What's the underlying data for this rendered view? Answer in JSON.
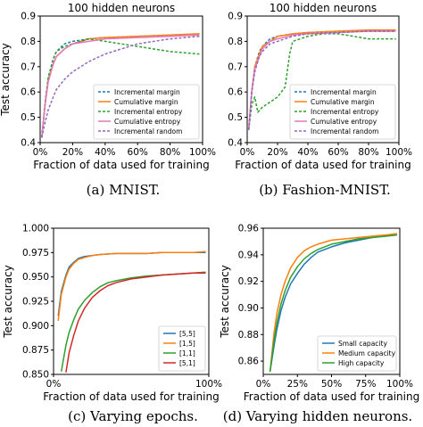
{
  "chart_data": [
    {
      "type": "line",
      "panel": "a",
      "title": "100 hidden neurons",
      "caption": "(a) MNIST.",
      "xlabel": "Fraction of data used for training",
      "ylabel": "Test accuracy",
      "xlim": [
        0,
        100
      ],
      "ylim": [
        0.4,
        0.9
      ],
      "xticks": [
        0,
        20,
        40,
        60,
        80,
        100
      ],
      "xtick_labels": [
        "0%",
        "20%",
        "40%",
        "60%",
        "80%",
        "100%"
      ],
      "yticks": [
        0.4,
        0.5,
        0.6,
        0.7,
        0.8,
        0.9
      ],
      "ytick_labels": [
        "0.4",
        "0.5",
        "0.6",
        "0.7",
        "0.8",
        "0.9"
      ],
      "legend_position": "bottom-right",
      "series": [
        {
          "name": "Incremental margin",
          "color": "#1f77b4",
          "dashed": true,
          "x": [
            1,
            3,
            5,
            8,
            10,
            15,
            20,
            30,
            40,
            60,
            80,
            98
          ],
          "y": [
            0.42,
            0.55,
            0.65,
            0.73,
            0.76,
            0.79,
            0.8,
            0.81,
            0.815,
            0.82,
            0.825,
            0.83
          ]
        },
        {
          "name": "Cumulative margin",
          "color": "#ff7f0e",
          "dashed": false,
          "x": [
            1,
            3,
            5,
            8,
            10,
            15,
            20,
            30,
            40,
            60,
            80,
            98
          ],
          "y": [
            0.42,
            0.55,
            0.65,
            0.71,
            0.74,
            0.77,
            0.79,
            0.81,
            0.815,
            0.82,
            0.825,
            0.83
          ]
        },
        {
          "name": "Incremental entropy",
          "color": "#2ca02c",
          "dashed": true,
          "x": [
            1,
            3,
            5,
            8,
            10,
            15,
            20,
            25,
            30,
            40,
            60,
            80,
            98
          ],
          "y": [
            0.42,
            0.56,
            0.66,
            0.73,
            0.76,
            0.78,
            0.79,
            0.8,
            0.81,
            0.8,
            0.78,
            0.76,
            0.75
          ]
        },
        {
          "name": "Cumulative entropy",
          "color": "#e377c2",
          "dashed": false,
          "x": [
            1,
            3,
            5,
            8,
            10,
            15,
            20,
            30,
            40,
            60,
            80,
            98
          ],
          "y": [
            0.42,
            0.55,
            0.64,
            0.71,
            0.74,
            0.77,
            0.79,
            0.8,
            0.81,
            0.815,
            0.82,
            0.825
          ]
        },
        {
          "name": "Incremental random",
          "color": "#9467bd",
          "dashed": true,
          "x": [
            1,
            3,
            5,
            8,
            10,
            15,
            20,
            30,
            40,
            50,
            60,
            80,
            98
          ],
          "y": [
            0.42,
            0.48,
            0.53,
            0.58,
            0.61,
            0.65,
            0.68,
            0.72,
            0.75,
            0.77,
            0.79,
            0.81,
            0.82
          ]
        }
      ]
    },
    {
      "type": "line",
      "panel": "b",
      "title": "100 hidden neurons",
      "caption": "(b) Fashion-MNIST.",
      "xlabel": "Fraction of data used for training",
      "ylabel": "",
      "xlim": [
        0,
        100
      ],
      "ylim": [
        0.4,
        0.9
      ],
      "xticks": [
        0,
        20,
        40,
        60,
        80,
        100
      ],
      "xtick_labels": [
        "0%",
        "20%",
        "40%",
        "60%",
        "80%",
        "100%"
      ],
      "yticks": [
        0.4,
        0.5,
        0.6,
        0.7,
        0.8,
        0.9
      ],
      "ytick_labels": [
        "0.4",
        "0.5",
        "0.6",
        "0.7",
        "0.8",
        "0.9"
      ],
      "legend_position": "bottom-right",
      "series": [
        {
          "name": "Incremental margin",
          "color": "#1f77b4",
          "dashed": true,
          "x": [
            1,
            3,
            5,
            8,
            10,
            15,
            20,
            30,
            40,
            60,
            80,
            98
          ],
          "y": [
            0.45,
            0.6,
            0.7,
            0.76,
            0.78,
            0.81,
            0.82,
            0.83,
            0.835,
            0.84,
            0.84,
            0.84
          ]
        },
        {
          "name": "Cumulative margin",
          "color": "#ff7f0e",
          "dashed": false,
          "x": [
            1,
            3,
            5,
            8,
            10,
            15,
            20,
            30,
            40,
            60,
            80,
            98
          ],
          "y": [
            0.45,
            0.6,
            0.7,
            0.75,
            0.78,
            0.8,
            0.82,
            0.83,
            0.835,
            0.84,
            0.845,
            0.845
          ]
        },
        {
          "name": "Incremental entropy",
          "color": "#2ca02c",
          "dashed": true,
          "x": [
            1,
            3,
            5,
            7,
            10,
            15,
            20,
            25,
            28,
            30,
            40,
            50,
            60,
            70,
            80,
            90,
            98
          ],
          "y": [
            0.45,
            0.55,
            0.58,
            0.52,
            0.54,
            0.56,
            0.58,
            0.62,
            0.75,
            0.8,
            0.82,
            0.83,
            0.83,
            0.82,
            0.81,
            0.81,
            0.81
          ]
        },
        {
          "name": "Cumulative entropy",
          "color": "#e377c2",
          "dashed": false,
          "x": [
            1,
            3,
            5,
            8,
            10,
            15,
            20,
            30,
            40,
            60,
            80,
            98
          ],
          "y": [
            0.45,
            0.6,
            0.69,
            0.74,
            0.77,
            0.8,
            0.81,
            0.825,
            0.83,
            0.835,
            0.84,
            0.84
          ]
        },
        {
          "name": "Incremental random",
          "color": "#9467bd",
          "dashed": true,
          "x": [
            1,
            3,
            5,
            8,
            10,
            15,
            20,
            30,
            40,
            60,
            80,
            98
          ],
          "y": [
            0.45,
            0.6,
            0.68,
            0.74,
            0.76,
            0.79,
            0.8,
            0.82,
            0.83,
            0.835,
            0.84,
            0.84
          ]
        }
      ]
    },
    {
      "type": "line",
      "panel": "c",
      "title": "",
      "caption": "(c) Varying epochs.",
      "xlabel": "Fraction of data used for training",
      "ylabel": "Test accuracy",
      "xlim": [
        0,
        100
      ],
      "ylim": [
        0.85,
        1.0
      ],
      "xticks": [
        0,
        100
      ],
      "xtick_labels": [
        "0%",
        "100%"
      ],
      "yticks": [
        0.85,
        0.875,
        0.9,
        0.925,
        0.95,
        0.975,
        1.0
      ],
      "ytick_labels": [
        "0.850",
        "0.875",
        "0.900",
        "0.925",
        "0.950",
        "0.975",
        "1.000"
      ],
      "legend_position": "bottom-right",
      "series": [
        {
          "name": "[5,5]",
          "color": "#1f77b4",
          "dashed": false,
          "x": [
            3,
            5,
            8,
            10,
            13,
            16,
            20,
            25,
            30,
            40,
            50,
            60,
            70,
            80,
            90,
            98
          ],
          "y": [
            0.91,
            0.935,
            0.952,
            0.96,
            0.965,
            0.969,
            0.971,
            0.972,
            0.973,
            0.974,
            0.974,
            0.974,
            0.975,
            0.975,
            0.975,
            0.975
          ]
        },
        {
          "name": "[1,5]",
          "color": "#ff7f0e",
          "dashed": false,
          "x": [
            3,
            5,
            8,
            10,
            13,
            16,
            20,
            25,
            30,
            40,
            50,
            60,
            70,
            80,
            90,
            98
          ],
          "y": [
            0.905,
            0.932,
            0.95,
            0.958,
            0.964,
            0.968,
            0.97,
            0.972,
            0.973,
            0.974,
            0.974,
            0.974,
            0.975,
            0.975,
            0.975,
            0.976
          ]
        },
        {
          "name": "[1,1]",
          "color": "#2ca02c",
          "dashed": false,
          "x": [
            5,
            8,
            10,
            13,
            16,
            20,
            25,
            30,
            35,
            40,
            50,
            60,
            70,
            80,
            90,
            98
          ],
          "y": [
            0.853,
            0.88,
            0.893,
            0.906,
            0.917,
            0.926,
            0.934,
            0.94,
            0.944,
            0.946,
            0.949,
            0.951,
            0.952,
            0.953,
            0.954,
            0.955
          ]
        },
        {
          "name": "[5,1]",
          "color": "#d62728",
          "dashed": false,
          "x": [
            8,
            10,
            13,
            16,
            20,
            25,
            30,
            35,
            40,
            50,
            60,
            70,
            80,
            90,
            98
          ],
          "y": [
            0.852,
            0.872,
            0.89,
            0.905,
            0.918,
            0.929,
            0.936,
            0.941,
            0.944,
            0.948,
            0.95,
            0.952,
            0.953,
            0.954,
            0.954
          ]
        }
      ]
    },
    {
      "type": "line",
      "panel": "d",
      "title": "",
      "caption": "(d) Varying hidden neurons.",
      "xlabel": "Fraction of data used for training",
      "ylabel": "Test accuracy",
      "xlim": [
        0,
        100
      ],
      "ylim": [
        0.85,
        0.96
      ],
      "xticks": [
        0,
        25,
        50,
        75,
        100
      ],
      "xtick_labels": [
        "0%",
        "25%",
        "50%",
        "75%",
        "100%"
      ],
      "yticks": [
        0.86,
        0.88,
        0.9,
        0.92,
        0.94,
        0.96
      ],
      "ytick_labels": [
        "0.86",
        "0.88",
        "0.90",
        "0.92",
        "0.94",
        "0.96"
      ],
      "legend_position": "bottom-right",
      "series": [
        {
          "name": "Small capacity",
          "color": "#1f77b4",
          "dashed": false,
          "x": [
            5,
            8,
            10,
            13,
            16,
            20,
            25,
            30,
            35,
            40,
            50,
            60,
            70,
            80,
            90,
            98
          ],
          "y": [
            0.852,
            0.872,
            0.884,
            0.898,
            0.908,
            0.918,
            0.926,
            0.933,
            0.938,
            0.942,
            0.946,
            0.949,
            0.951,
            0.953,
            0.954,
            0.955
          ]
        },
        {
          "name": "Medium capacity",
          "color": "#ff7f0e",
          "dashed": false,
          "x": [
            5,
            8,
            10,
            13,
            16,
            20,
            25,
            30,
            35,
            40,
            50,
            60,
            70,
            80,
            90,
            98
          ],
          "y": [
            0.852,
            0.882,
            0.896,
            0.91,
            0.92,
            0.93,
            0.938,
            0.943,
            0.946,
            0.948,
            0.951,
            0.952,
            0.953,
            0.954,
            0.955,
            0.956
          ]
        },
        {
          "name": "High capacity",
          "color": "#2ca02c",
          "dashed": false,
          "x": [
            5,
            8,
            10,
            13,
            16,
            20,
            25,
            30,
            35,
            40,
            50,
            60,
            70,
            80,
            90,
            98
          ],
          "y": [
            0.852,
            0.876,
            0.889,
            0.903,
            0.913,
            0.923,
            0.931,
            0.937,
            0.941,
            0.944,
            0.948,
            0.95,
            0.952,
            0.953,
            0.954,
            0.955
          ]
        }
      ]
    }
  ]
}
